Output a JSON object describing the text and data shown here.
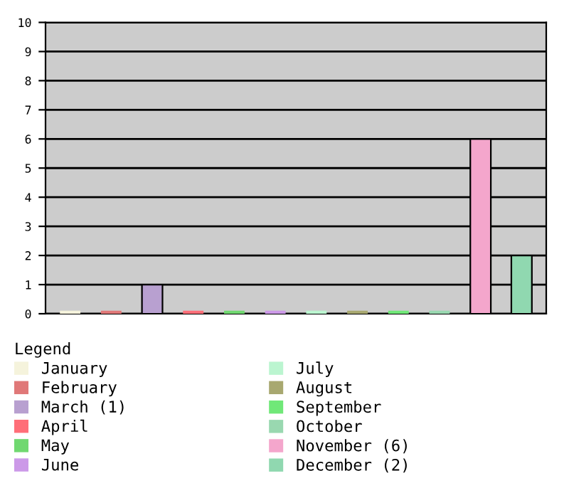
{
  "chart_data": {
    "type": "bar",
    "categories": [
      null,
      null,
      null,
      null,
      null,
      null,
      null,
      null,
      null,
      null,
      null,
      null
    ],
    "legend_title": "Legend",
    "legend": "bottom",
    "grid": "y",
    "tick_labels": "y",
    "ylim": [
      0,
      10
    ],
    "yticks": [
      0,
      1,
      2,
      3,
      4,
      5,
      6,
      7,
      8,
      9,
      10
    ],
    "series": [
      {
        "name": "January",
        "color": "#f5f3dc",
        "values": [
          0,
          null,
          null,
          null,
          null,
          null,
          null,
          null,
          null,
          null,
          null,
          null
        ]
      },
      {
        "name": "February",
        "color": "#e07878",
        "values": [
          null,
          0,
          null,
          null,
          null,
          null,
          null,
          null,
          null,
          null,
          null,
          null
        ]
      },
      {
        "name": "March (1)",
        "color": "#b8a0d0",
        "values": [
          null,
          null,
          1,
          null,
          null,
          null,
          null,
          null,
          null,
          null,
          null,
          null
        ]
      },
      {
        "name": "April",
        "color": "#ff6e78",
        "values": [
          null,
          null,
          null,
          0,
          null,
          null,
          null,
          null,
          null,
          null,
          null,
          null
        ]
      },
      {
        "name": "May",
        "color": "#70d870",
        "values": [
          null,
          null,
          null,
          null,
          0,
          null,
          null,
          null,
          null,
          null,
          null,
          null
        ]
      },
      {
        "name": "June",
        "color": "#cc99e8",
        "values": [
          null,
          null,
          null,
          null,
          null,
          0,
          null,
          null,
          null,
          null,
          null,
          null
        ]
      },
      {
        "name": "July",
        "color": "#bbf5d0",
        "values": [
          null,
          null,
          null,
          null,
          null,
          null,
          0,
          null,
          null,
          null,
          null,
          null
        ]
      },
      {
        "name": "August",
        "color": "#a8a870",
        "values": [
          null,
          null,
          null,
          null,
          null,
          null,
          null,
          0,
          null,
          null,
          null,
          null
        ]
      },
      {
        "name": "September",
        "color": "#70e878",
        "values": [
          null,
          null,
          null,
          null,
          null,
          null,
          null,
          null,
          0,
          null,
          null,
          null
        ]
      },
      {
        "name": "October",
        "color": "#99d8b0",
        "values": [
          null,
          null,
          null,
          null,
          null,
          null,
          null,
          null,
          null,
          0,
          null,
          null
        ]
      },
      {
        "name": "November (6)",
        "color": "#f4a6cc",
        "values": [
          null,
          null,
          null,
          null,
          null,
          null,
          null,
          null,
          null,
          null,
          6,
          null
        ]
      },
      {
        "name": "December (2)",
        "color": "#90d8b0",
        "values": [
          null,
          null,
          null,
          null,
          null,
          null,
          null,
          null,
          null,
          null,
          null,
          2
        ]
      }
    ]
  }
}
